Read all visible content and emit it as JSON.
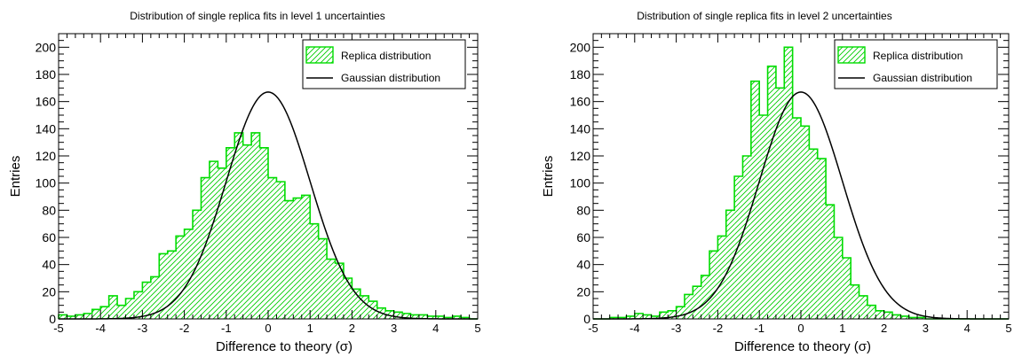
{
  "chart_data": [
    {
      "type": "bar",
      "title": "Distribution of single replica fits in level 1 uncertainties",
      "xlabel": "Difference to theory (σ)",
      "ylabel": "Entries",
      "xlim": [
        -5,
        5
      ],
      "ylim": [
        0,
        210
      ],
      "grid": false,
      "legend_position": "top-right",
      "x_ticks": [
        "-5",
        "-4",
        "-3",
        "-2",
        "-1",
        "0",
        "1",
        "2",
        "3",
        "4",
        "5"
      ],
      "y_ticks": [
        "0",
        "20",
        "40",
        "60",
        "80",
        "100",
        "120",
        "140",
        "160",
        "180",
        "200"
      ],
      "bin_width": 0.2,
      "bin_start": -5,
      "series": [
        {
          "name": "Replica distribution",
          "style": "hatched-histogram",
          "color": "#00dd00",
          "values": [
            3,
            2,
            3,
            4,
            7,
            9,
            17,
            10,
            15,
            20,
            27,
            31,
            48,
            50,
            61,
            66,
            80,
            104,
            116,
            111,
            126,
            137,
            128,
            137,
            126,
            104,
            101,
            87,
            89,
            91,
            70,
            59,
            44,
            41,
            30,
            22,
            17,
            13,
            8,
            6,
            5,
            4,
            3,
            3,
            2,
            2,
            1,
            2,
            1,
            0
          ]
        },
        {
          "name": "Gaussian distribution",
          "style": "line",
          "color": "#000000",
          "function": "gaussian",
          "mean": 0,
          "sigma": 1,
          "peak": 167
        }
      ]
    },
    {
      "type": "bar",
      "title": "Distribution of single replica fits in level 2 uncertainties",
      "xlabel": "Difference to theory (σ)",
      "ylabel": "Entries",
      "xlim": [
        -5,
        5
      ],
      "ylim": [
        0,
        210
      ],
      "grid": false,
      "legend_position": "top-right",
      "x_ticks": [
        "-5",
        "-4",
        "-3",
        "-2",
        "-1",
        "0",
        "1",
        "2",
        "3",
        "4",
        "5"
      ],
      "y_ticks": [
        "0",
        "20",
        "40",
        "60",
        "80",
        "100",
        "120",
        "140",
        "160",
        "180",
        "200"
      ],
      "bin_width": 0.2,
      "bin_start": -5,
      "series": [
        {
          "name": "Replica distribution",
          "style": "hatched-histogram",
          "color": "#00dd00",
          "values": [
            0,
            0,
            1,
            1,
            2,
            4,
            3,
            2,
            5,
            6,
            9,
            18,
            24,
            32,
            50,
            61,
            80,
            105,
            120,
            175,
            150,
            186,
            170,
            200,
            148,
            142,
            125,
            118,
            84,
            60,
            45,
            25,
            17,
            10,
            6,
            5,
            3,
            2,
            1,
            1,
            0,
            0,
            0,
            0,
            0,
            0,
            0,
            0,
            0,
            0
          ]
        },
        {
          "name": "Gaussian distribution",
          "style": "line",
          "color": "#000000",
          "function": "gaussian",
          "mean": 0,
          "sigma": 1,
          "peak": 167
        }
      ]
    }
  ]
}
